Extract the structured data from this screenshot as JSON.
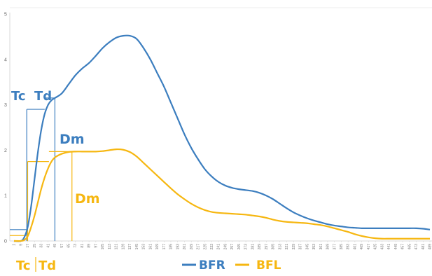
{
  "chart_data": {
    "type": "line",
    "ylim": [
      0,
      5
    ],
    "y_ticks": [
      "0",
      "1",
      "2",
      "3",
      "4",
      "5"
    ],
    "x_start": 1,
    "x_end": 489,
    "x_ticks": [
      "1",
      "9",
      "17",
      "25",
      "33",
      "41",
      "49",
      "57",
      "65",
      "73",
      "81",
      "89",
      "97",
      "105",
      "113",
      "121",
      "129",
      "137",
      "145",
      "153",
      "161",
      "169",
      "177",
      "185",
      "193",
      "201",
      "209",
      "217",
      "225",
      "233",
      "241",
      "249",
      "257",
      "265",
      "273",
      "281",
      "289",
      "297",
      "305",
      "313",
      "321",
      "329",
      "337",
      "345",
      "353",
      "361",
      "369",
      "377",
      "385",
      "393",
      "401",
      "409",
      "417",
      "425",
      "433",
      "441",
      "449",
      "457",
      "465",
      "473",
      "481",
      "489"
    ],
    "grid": false,
    "legend_position": "bottom",
    "series": [
      {
        "name": "BFR",
        "color": "#3c7ebf",
        "points": [
          [
            1,
            0
          ],
          [
            9,
            0
          ],
          [
            13,
            0.08
          ],
          [
            17,
            0.3
          ],
          [
            21,
            0.75
          ],
          [
            25,
            1.35
          ],
          [
            29,
            1.95
          ],
          [
            33,
            2.45
          ],
          [
            37,
            2.8
          ],
          [
            41,
            3.0
          ],
          [
            45,
            3.1
          ],
          [
            49,
            3.15
          ],
          [
            57,
            3.25
          ],
          [
            65,
            3.45
          ],
          [
            73,
            3.65
          ],
          [
            81,
            3.8
          ],
          [
            89,
            3.92
          ],
          [
            97,
            4.08
          ],
          [
            105,
            4.25
          ],
          [
            113,
            4.38
          ],
          [
            121,
            4.48
          ],
          [
            129,
            4.52
          ],
          [
            137,
            4.52
          ],
          [
            145,
            4.45
          ],
          [
            153,
            4.25
          ],
          [
            161,
            4.0
          ],
          [
            169,
            3.7
          ],
          [
            177,
            3.4
          ],
          [
            185,
            3.05
          ],
          [
            193,
            2.7
          ],
          [
            201,
            2.35
          ],
          [
            209,
            2.05
          ],
          [
            217,
            1.8
          ],
          [
            225,
            1.58
          ],
          [
            233,
            1.42
          ],
          [
            241,
            1.3
          ],
          [
            249,
            1.22
          ],
          [
            257,
            1.17
          ],
          [
            265,
            1.14
          ],
          [
            273,
            1.12
          ],
          [
            281,
            1.1
          ],
          [
            289,
            1.06
          ],
          [
            297,
            1.0
          ],
          [
            305,
            0.92
          ],
          [
            313,
            0.82
          ],
          [
            321,
            0.72
          ],
          [
            329,
            0.63
          ],
          [
            337,
            0.56
          ],
          [
            345,
            0.5
          ],
          [
            353,
            0.45
          ],
          [
            361,
            0.41
          ],
          [
            369,
            0.37
          ],
          [
            377,
            0.34
          ],
          [
            385,
            0.32
          ],
          [
            393,
            0.3
          ],
          [
            401,
            0.29
          ],
          [
            409,
            0.28
          ],
          [
            417,
            0.28
          ],
          [
            425,
            0.28
          ],
          [
            433,
            0.28
          ],
          [
            441,
            0.28
          ],
          [
            449,
            0.28
          ],
          [
            457,
            0.28
          ],
          [
            465,
            0.28
          ],
          [
            473,
            0.28
          ],
          [
            481,
            0.27
          ],
          [
            489,
            0.25
          ]
        ]
      },
      {
        "name": "BFL",
        "color": "#f6b711",
        "points": [
          [
            1,
            0
          ],
          [
            9,
            0
          ],
          [
            13,
            0.02
          ],
          [
            17,
            0.1
          ],
          [
            21,
            0.3
          ],
          [
            25,
            0.55
          ],
          [
            29,
            0.85
          ],
          [
            33,
            1.15
          ],
          [
            37,
            1.4
          ],
          [
            41,
            1.6
          ],
          [
            45,
            1.75
          ],
          [
            49,
            1.84
          ],
          [
            57,
            1.92
          ],
          [
            65,
            1.96
          ],
          [
            73,
            1.97
          ],
          [
            81,
            1.97
          ],
          [
            89,
            1.97
          ],
          [
            97,
            1.97
          ],
          [
            105,
            1.98
          ],
          [
            113,
            2.0
          ],
          [
            121,
            2.02
          ],
          [
            129,
            2.01
          ],
          [
            137,
            1.96
          ],
          [
            145,
            1.86
          ],
          [
            153,
            1.72
          ],
          [
            161,
            1.58
          ],
          [
            169,
            1.44
          ],
          [
            177,
            1.3
          ],
          [
            185,
            1.16
          ],
          [
            193,
            1.03
          ],
          [
            201,
            0.92
          ],
          [
            209,
            0.82
          ],
          [
            217,
            0.74
          ],
          [
            225,
            0.68
          ],
          [
            233,
            0.64
          ],
          [
            241,
            0.62
          ],
          [
            249,
            0.61
          ],
          [
            257,
            0.6
          ],
          [
            265,
            0.59
          ],
          [
            273,
            0.58
          ],
          [
            281,
            0.56
          ],
          [
            289,
            0.54
          ],
          [
            297,
            0.51
          ],
          [
            305,
            0.47
          ],
          [
            313,
            0.44
          ],
          [
            321,
            0.42
          ],
          [
            329,
            0.41
          ],
          [
            337,
            0.4
          ],
          [
            345,
            0.39
          ],
          [
            353,
            0.37
          ],
          [
            361,
            0.35
          ],
          [
            369,
            0.32
          ],
          [
            377,
            0.28
          ],
          [
            385,
            0.24
          ],
          [
            393,
            0.2
          ],
          [
            401,
            0.15
          ],
          [
            409,
            0.11
          ],
          [
            417,
            0.08
          ],
          [
            425,
            0.06
          ],
          [
            433,
            0.05
          ],
          [
            441,
            0.05
          ],
          [
            449,
            0.05
          ],
          [
            457,
            0.05
          ],
          [
            465,
            0.05
          ],
          [
            473,
            0.05
          ],
          [
            481,
            0.05
          ],
          [
            489,
            0.05
          ]
        ]
      }
    ],
    "annotations": [
      {
        "series": "BFR",
        "tc_label": "Tc",
        "td_label": "Td",
        "dm_label": "Dm",
        "tc_x": 16,
        "td_x": 37,
        "dm_x": 49,
        "tc_level": 0.25,
        "td_level": 2.9,
        "dm_level": 3.15
      },
      {
        "series": "BFL",
        "tc_label": "Tc",
        "td_label": "Td",
        "dm_label": "Dm",
        "tc_x": 17,
        "td_x": 42,
        "dm_x": 69,
        "tc_level": 0.12,
        "td_level": 1.75,
        "dm_level": 1.97
      }
    ]
  }
}
